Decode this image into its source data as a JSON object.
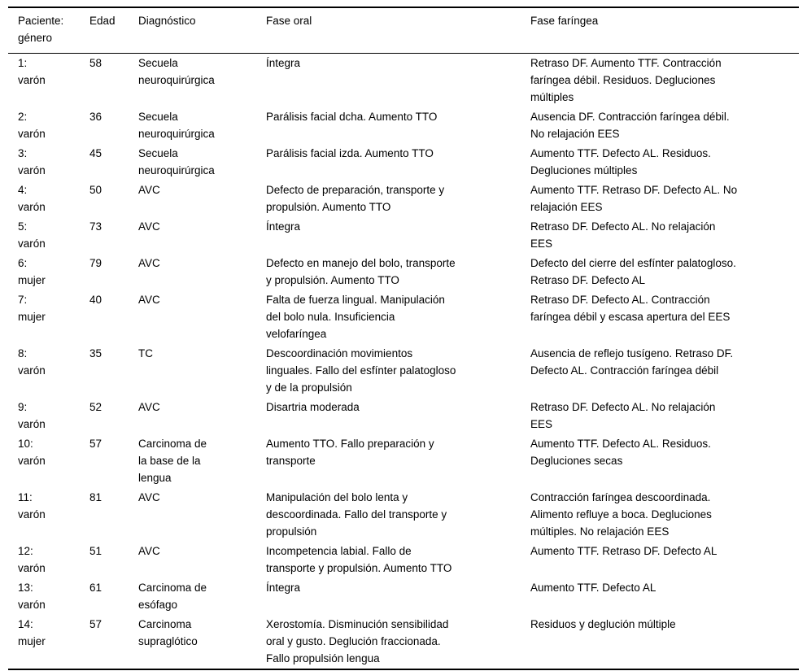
{
  "colors": {
    "text": "#000000",
    "background": "#ffffff",
    "rule": "#000000"
  },
  "table": {
    "columns": [
      {
        "key": "patient",
        "label": "Paciente: género"
      },
      {
        "key": "age",
        "label": "Edad"
      },
      {
        "key": "diagnosis",
        "label": "Diagnóstico"
      },
      {
        "key": "oral",
        "label": "Fase oral"
      },
      {
        "key": "pharyngeal",
        "label": "Fase faríngea"
      }
    ],
    "rows": [
      {
        "patient": "1: varón",
        "age": "58",
        "diagnosis": "Secuela neuroquirúrgica",
        "oral": "Íntegra",
        "pharyngeal": "Retraso DF. Aumento TTF. Contracción faríngea débil. Residuos. Degluciones múltiples"
      },
      {
        "patient": "2: varón",
        "age": "36",
        "diagnosis": "Secuela neuroquirúrgica",
        "oral": "Parálisis facial dcha. Aumento TTO",
        "pharyngeal": "Ausencia DF. Contracción faríngea débil. No relajación EES"
      },
      {
        "patient": "3: varón",
        "age": "45",
        "diagnosis": "Secuela neuroquirúrgica",
        "oral": "Parálisis facial izda. Aumento TTO",
        "pharyngeal": "Aumento TTF. Defecto AL. Residuos. Degluciones múltiples"
      },
      {
        "patient": "4: varón",
        "age": "50",
        "diagnosis": "AVC",
        "oral": "Defecto de preparación, transporte y propulsión. Aumento TTO",
        "pharyngeal": "Aumento TTF. Retraso DF. Defecto AL. No relajación EES"
      },
      {
        "patient": "5: varón",
        "age": "73",
        "diagnosis": "AVC",
        "oral": "Íntegra",
        "pharyngeal": "Retraso DF. Defecto AL. No relajación EES"
      },
      {
        "patient": "6: mujer",
        "age": "79",
        "diagnosis": "AVC",
        "oral": "Defecto en manejo del bolo, transporte y propulsión. Aumento TTO",
        "pharyngeal": "Defecto del cierre del esfínter palatogloso. Retraso DF. Defecto AL"
      },
      {
        "patient": "7: mujer",
        "age": "40",
        "diagnosis": "AVC",
        "oral": "Falta de fuerza lingual. Manipulación del bolo nula. Insuficiencia velofaríngea",
        "pharyngeal": "Retraso DF. Defecto AL. Contracción faríngea débil y escasa apertura del EES"
      },
      {
        "patient": "8: varón",
        "age": "35",
        "diagnosis": "TC",
        "oral": "Descoordinación movimientos linguales. Fallo del esfínter palatogloso y de la propulsión",
        "pharyngeal": "Ausencia de reflejo tusígeno. Retraso DF. Defecto AL. Contracción faríngea débil"
      },
      {
        "patient": "9: varón",
        "age": "52",
        "diagnosis": "AVC",
        "oral": "Disartria moderada",
        "pharyngeal": "Retraso DF. Defecto AL. No relajación EES"
      },
      {
        "patient": "10: varón",
        "age": "57",
        "diagnosis": "Carcinoma de la base de la lengua",
        "oral": "Aumento TTO. Fallo preparación y transporte",
        "pharyngeal": "Aumento TTF. Defecto AL. Residuos. Degluciones secas"
      },
      {
        "patient": "11: varón",
        "age": "81",
        "diagnosis": "AVC",
        "oral": "Manipulación del bolo lenta y descoordinada. Fallo del transporte y propulsión",
        "pharyngeal": "Contracción faríngea descoordinada. Alimento refluye a boca. Degluciones múltiples. No relajación EES"
      },
      {
        "patient": "12: varón",
        "age": "51",
        "diagnosis": "AVC",
        "oral": "Incompetencia labial. Fallo de transporte y propulsión. Aumento TTO",
        "pharyngeal": "Aumento TTF. Retraso DF. Defecto AL"
      },
      {
        "patient": "13: varón",
        "age": "61",
        "diagnosis": "Carcinoma de esófago",
        "oral": "Íntegra",
        "pharyngeal": "Aumento TTF. Defecto AL"
      },
      {
        "patient": "14: mujer",
        "age": "57",
        "diagnosis": "Carcinoma supraglótico",
        "oral": "Xerostomía. Disminución sensibilidad oral y gusto. Deglución fraccionada. Fallo propulsión lengua",
        "pharyngeal": "Residuos y deglución múltiple"
      }
    ]
  }
}
